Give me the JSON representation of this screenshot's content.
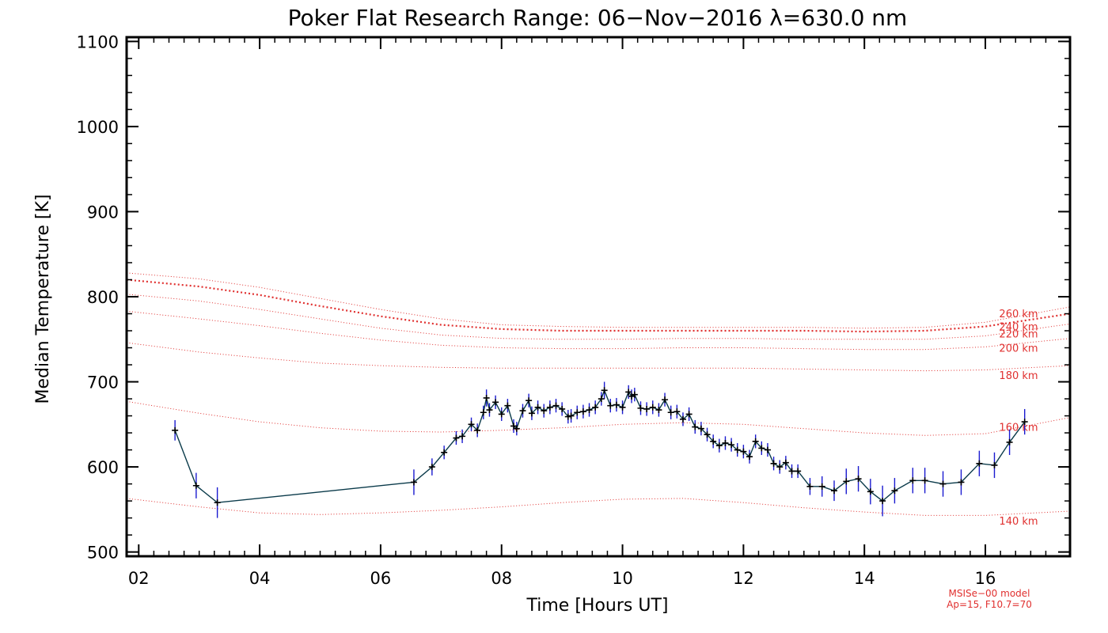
{
  "chart_data": {
    "type": "line",
    "title": "Poker Flat Research Range: 06−Nov−2016 λ=630.0 nm",
    "xlabel": "Time [Hours UT]",
    "ylabel": "Median Temperature [K]",
    "xlim": [
      1.8,
      17.4
    ],
    "ylim": [
      495,
      1105
    ],
    "x_ticks": [
      2,
      4,
      6,
      8,
      10,
      12,
      14,
      16
    ],
    "x_tick_labels": [
      "02",
      "04",
      "06",
      "08",
      "10",
      "12",
      "14",
      "16"
    ],
    "y_ticks": [
      500,
      600,
      700,
      800,
      900,
      1000,
      1100
    ],
    "y_tick_labels": [
      "500",
      "600",
      "700",
      "800",
      "900",
      "1000",
      "1100"
    ],
    "grid": false,
    "colors": {
      "data_line": "#0a3a4a",
      "error_bar": "#1a1ad0",
      "marker": "#000000",
      "model": "#e0302f"
    },
    "model_note": [
      "MSISe−00 model",
      "Ap=15, F10.7=70"
    ],
    "series": [
      {
        "marker": "plus",
        "x": [
          2.6,
          2.95,
          3.3,
          6.55,
          6.85,
          7.05,
          7.25,
          7.35,
          7.5,
          7.6,
          7.7,
          7.75,
          7.8,
          7.9,
          8.0,
          8.1,
          8.2,
          8.25,
          8.35,
          8.45,
          8.5,
          8.6,
          8.7,
          8.8,
          8.9,
          9.0,
          9.1,
          9.15,
          9.25,
          9.35,
          9.45,
          9.55,
          9.65,
          9.7,
          9.8,
          9.9,
          10.0,
          10.1,
          10.15,
          10.2,
          10.3,
          10.4,
          10.5,
          10.6,
          10.7,
          10.8,
          10.9,
          11.0,
          11.1,
          11.2,
          11.3,
          11.4,
          11.5,
          11.6,
          11.7,
          11.8,
          11.9,
          12.0,
          12.1,
          12.2,
          12.3,
          12.4,
          12.5,
          12.6,
          12.7,
          12.8,
          12.9,
          13.1,
          13.3,
          13.5,
          13.7,
          13.9,
          14.1,
          14.3,
          14.5,
          14.8,
          15.0,
          15.3,
          15.6,
          15.9,
          16.15,
          16.4,
          16.65
        ],
        "y": [
          643,
          578,
          558,
          582,
          600,
          617,
          634,
          636,
          650,
          643,
          664,
          681,
          667,
          676,
          662,
          672,
          648,
          645,
          666,
          678,
          663,
          670,
          666,
          670,
          672,
          668,
          659,
          660,
          664,
          665,
          667,
          670,
          680,
          690,
          672,
          673,
          670,
          688,
          683,
          685,
          669,
          668,
          670,
          667,
          679,
          664,
          665,
          656,
          662,
          647,
          645,
          638,
          630,
          625,
          628,
          626,
          620,
          618,
          612,
          630,
          622,
          620,
          604,
          600,
          605,
          595,
          595,
          577,
          577,
          572,
          583,
          586,
          571,
          560,
          572,
          584,
          584,
          580,
          582,
          604,
          602,
          629,
          653
        ],
        "err": [
          12,
          15,
          18,
          15,
          10,
          8,
          8,
          8,
          8,
          8,
          8,
          10,
          8,
          8,
          8,
          8,
          8,
          8,
          8,
          8,
          8,
          8,
          8,
          8,
          8,
          8,
          8,
          8,
          8,
          8,
          8,
          8,
          8,
          10,
          8,
          8,
          8,
          8,
          8,
          8,
          8,
          8,
          8,
          8,
          8,
          8,
          8,
          8,
          8,
          8,
          8,
          8,
          8,
          8,
          8,
          8,
          8,
          8,
          8,
          8,
          8,
          8,
          8,
          8,
          8,
          8,
          8,
          10,
          12,
          12,
          15,
          15,
          15,
          18,
          15,
          15,
          15,
          15,
          15,
          15,
          15,
          15,
          15
        ]
      }
    ],
    "model_curves": [
      {
        "label": "140 km",
        "x": [
          1.8,
          3,
          4,
          5,
          6,
          7,
          8,
          9,
          10,
          11,
          12,
          13,
          14,
          15,
          16,
          17.4
        ],
        "y": [
          563,
          553,
          546,
          544,
          546,
          549,
          553,
          558,
          562,
          563,
          558,
          552,
          547,
          543,
          543,
          548
        ]
      },
      {
        "label": "160 km",
        "x": [
          1.8,
          3,
          4,
          5,
          6,
          7,
          8,
          9,
          10,
          11,
          12,
          13,
          14,
          15,
          16,
          17.4
        ],
        "y": [
          677,
          663,
          653,
          646,
          642,
          641,
          643,
          646,
          650,
          652,
          650,
          645,
          640,
          637,
          639,
          658
        ]
      },
      {
        "label": "180 km",
        "x": [
          1.8,
          3,
          4,
          5,
          6,
          7,
          8,
          9,
          10,
          11,
          12,
          13,
          14,
          15,
          16,
          17.4
        ],
        "y": [
          746,
          735,
          728,
          722,
          719,
          717,
          716,
          716,
          716,
          716,
          716,
          715,
          714,
          713,
          714,
          719
        ]
      },
      {
        "label": "200 km",
        "x": [
          1.8,
          3,
          4,
          5,
          6,
          7,
          8,
          9,
          10,
          11,
          12,
          13,
          14,
          15,
          16,
          17.4
        ],
        "y": [
          783,
          774,
          766,
          757,
          749,
          743,
          740,
          739,
          739,
          740,
          740,
          739,
          738,
          738,
          741,
          751
        ]
      },
      {
        "label": "220 km",
        "x": [
          1.8,
          3,
          4,
          5,
          6,
          7,
          8,
          9,
          10,
          11,
          12,
          13,
          14,
          15,
          16,
          17.4
        ],
        "y": [
          803,
          795,
          785,
          774,
          763,
          755,
          751,
          750,
          750,
          751,
          751,
          750,
          750,
          750,
          754,
          768
        ]
      },
      {
        "label": "240 km",
        "x": [
          1.8,
          3,
          4,
          5,
          6,
          7,
          8,
          9,
          10,
          11,
          12,
          13,
          14,
          15,
          16,
          17.4
        ],
        "y": [
          820,
          812,
          802,
          789,
          777,
          767,
          762,
          760,
          760,
          760,
          760,
          760,
          759,
          760,
          765,
          780
        ]
      },
      {
        "label": "260 km",
        "x": [
          1.8,
          3,
          4,
          5,
          6,
          7,
          8,
          9,
          10,
          11,
          12,
          13,
          14,
          15,
          16,
          17.4
        ],
        "y": [
          828,
          821,
          811,
          798,
          785,
          774,
          767,
          765,
          764,
          764,
          764,
          764,
          763,
          764,
          770,
          788
        ]
      }
    ]
  }
}
